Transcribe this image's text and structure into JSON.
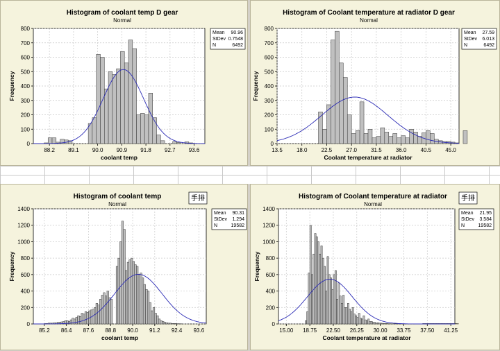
{
  "chart_data": [
    {
      "type": "bar",
      "title": "Histogram of coolant temp D gear",
      "subtitle": "Normal",
      "xlabel": "coolant temp",
      "ylabel": "Frequency",
      "xlim": [
        87.6,
        94.0
      ],
      "ylim": [
        0,
        800
      ],
      "x_ticks": [
        "88.2",
        "89.1",
        "90.0",
        "90.9",
        "91.8",
        "92.7",
        "93.6"
      ],
      "y_ticks": [
        0,
        100,
        200,
        300,
        400,
        500,
        600,
        700,
        800
      ],
      "bin_start": 88.0,
      "bin_width": 0.15,
      "counts": [
        5,
        40,
        40,
        10,
        30,
        25,
        20,
        0,
        0,
        0,
        0,
        140,
        180,
        620,
        600,
        380,
        500,
        480,
        520,
        640,
        560,
        720,
        660,
        200,
        210,
        200,
        350,
        180,
        60,
        20,
        0,
        0,
        15,
        8,
        0,
        12,
        5
      ],
      "normal_curve": {
        "mean": 90.96,
        "stdev": 0.7548,
        "n": 6492
      },
      "legend": {
        "position": "top-right",
        "labels": [
          "Mean",
          "StDev",
          "N"
        ],
        "values": [
          "90.96",
          "0.7548",
          "6492"
        ]
      },
      "grid": true
    },
    {
      "type": "bar",
      "title": "Histogram of Coolant temperature at radiator D gear",
      "subtitle": "Normal",
      "xlabel": "Coolant temperature at radiator",
      "ylabel": "Frequency",
      "xlim": [
        13.5,
        46.5
      ],
      "ylim": [
        0,
        800
      ],
      "x_ticks": [
        "13.5",
        "18.0",
        "22.5",
        "27.0",
        "31.5",
        "36.0",
        "40.5",
        "45.0"
      ],
      "y_ticks": [
        0,
        100,
        200,
        300,
        400,
        500,
        600,
        700,
        800
      ],
      "bin_start": 21.0,
      "bin_width": 0.75,
      "counts": [
        220,
        100,
        270,
        720,
        780,
        560,
        460,
        200,
        70,
        90,
        290,
        70,
        100,
        40,
        50,
        110,
        80,
        50,
        70,
        40,
        55,
        40,
        100,
        80,
        50,
        75,
        90,
        70,
        30,
        20,
        15,
        15,
        10,
        5,
        0,
        90
      ],
      "normal_curve": {
        "mean": 27.59,
        "stdev": 6.013,
        "n": 6492
      },
      "legend": {
        "position": "top-right",
        "labels": [
          "Mean",
          "StDev",
          "N"
        ],
        "values": [
          "27.59",
          "6.013",
          "6492"
        ]
      },
      "grid": true
    },
    {
      "type": "bar",
      "title": "Histogram of coolant temp",
      "subtitle": "Normal",
      "xlabel": "coolant temp",
      "ylabel": "Frequency",
      "xlim": [
        84.6,
        94.0
      ],
      "ylim": [
        0,
        1400
      ],
      "x_ticks": [
        "85.2",
        "86.4",
        "87.6",
        "88.8",
        "90.0",
        "91.2",
        "92.4",
        "93.6"
      ],
      "y_ticks": [
        0,
        200,
        400,
        600,
        800,
        1000,
        1200,
        1400
      ],
      "bin_start": 85.2,
      "bin_width": 0.1,
      "counts": [
        5,
        5,
        10,
        10,
        10,
        15,
        15,
        20,
        20,
        25,
        30,
        40,
        40,
        30,
        50,
        70,
        60,
        80,
        100,
        90,
        130,
        120,
        150,
        140,
        160,
        170,
        180,
        200,
        250,
        230,
        300,
        350,
        380,
        340,
        400,
        320,
        300,
        0,
        0,
        700,
        800,
        1000,
        1250,
        1150,
        650,
        750,
        780,
        800,
        760,
        720,
        700,
        600,
        620,
        560,
        480,
        420,
        400,
        260,
        160,
        200,
        130,
        100,
        60,
        40,
        30,
        20,
        15,
        10,
        10,
        5,
        5,
        5,
        3,
        3,
        2
      ],
      "normal_curve": {
        "mean": 90.31,
        "stdev": 1.294,
        "n": 19582
      },
      "legend": {
        "position": "top-right",
        "labels": [
          "Mean",
          "StDev",
          "N"
        ],
        "values": [
          "90.31",
          "1.294",
          "19582"
        ]
      },
      "annotation": "手排",
      "grid": true
    },
    {
      "type": "bar",
      "title": "Histogram of Coolant temperature at radiator",
      "subtitle": "Normal",
      "xlabel": "Coolant temperature at radiator",
      "ylabel": "Frequency",
      "xlim": [
        13.75,
        41.9
      ],
      "ylim": [
        0,
        1400
      ],
      "x_ticks": [
        "15.00",
        "18.75",
        "22.50",
        "26.25",
        "30.00",
        "33.75",
        "37.50",
        "41.25"
      ],
      "y_ticks": [
        0,
        200,
        400,
        600,
        800,
        1000,
        1200,
        1400
      ],
      "bin_start": 18.0,
      "bin_width": 0.25,
      "counts": [
        40,
        150,
        620,
        1200,
        600,
        850,
        1100,
        1060,
        1000,
        850,
        950,
        800,
        700,
        400,
        820,
        600,
        560,
        420,
        600,
        650,
        300,
        500,
        340,
        250,
        350,
        200,
        200,
        250,
        180,
        150,
        200,
        120,
        100,
        80,
        130,
        70,
        60,
        100,
        50,
        40,
        60,
        30,
        30,
        20,
        20,
        10,
        15,
        10,
        10,
        8,
        5,
        5,
        5,
        3,
        3,
        2,
        2,
        2,
        2,
        2,
        2,
        2,
        2,
        2,
        2,
        2,
        2,
        2,
        2,
        2,
        2,
        2,
        2,
        2,
        2,
        5,
        5,
        5,
        5,
        5,
        5,
        5,
        5,
        5,
        5,
        5,
        5,
        5,
        5,
        5,
        5,
        5,
        5,
        5,
        5,
        5,
        5,
        3
      ],
      "normal_curve": {
        "mean": 21.95,
        "stdev": 3.584,
        "n": 19582
      },
      "legend": {
        "position": "top-right",
        "labels": [
          "Mean",
          "StDev",
          "N"
        ],
        "values": [
          "21.95",
          "3.584",
          "19582"
        ]
      },
      "annotation": "手排",
      "grid": true
    }
  ]
}
